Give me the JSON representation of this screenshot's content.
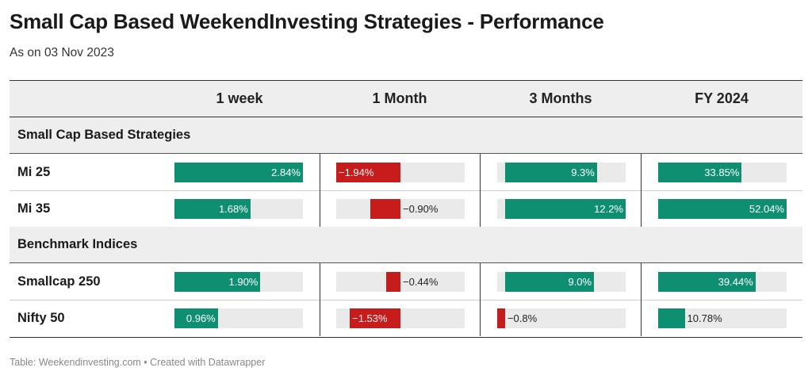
{
  "title": "Small Cap Based WeekendInvesting Strategies - Performance",
  "subtitle": "As on 03 Nov 2023",
  "footer": "Table: Weekendinvesting.com • Created with Datawrapper",
  "columns": [
    "1 week",
    "1 Month",
    "3 Months",
    "FY 2024"
  ],
  "colors": {
    "positive": "#0f8f72",
    "negative": "#c71c1c",
    "track": "#eaeaea",
    "header_bg": "#eeeeee"
  },
  "groups": [
    {
      "name": "Small Cap Based Strategies",
      "rows": [
        {
          "label": "Mi 25",
          "values": [
            2.84,
            -1.94,
            9.3,
            33.85
          ],
          "labels": [
            "2.84%",
            "−1.94%",
            "9.3%",
            "33.85%"
          ]
        },
        {
          "label": "Mi 35",
          "values": [
            1.68,
            -0.9,
            12.2,
            52.04
          ],
          "labels": [
            "1.68%",
            "−0.90%",
            "12.2%",
            "52.04%"
          ]
        }
      ]
    },
    {
      "name": "Benchmark Indices",
      "rows": [
        {
          "label": "Smallcap 250",
          "values": [
            1.9,
            -0.44,
            9.0,
            39.44
          ],
          "labels": [
            "1.90%",
            "−0.44%",
            "9.0%",
            "39.44%"
          ]
        },
        {
          "label": "Nifty 50",
          "values": [
            0.96,
            -1.53,
            -0.8,
            10.78
          ],
          "labels": [
            "0.96%",
            "−1.53%",
            "−0.8%",
            "10.78%"
          ]
        }
      ]
    }
  ],
  "chart_data": {
    "type": "table",
    "title": "Small Cap Based WeekendInvesting Strategies - Performance",
    "subtitle": "As on 03 Nov 2023",
    "columns": [
      "1 week",
      "1 Month",
      "3 Months",
      "FY 2024"
    ],
    "series": [
      {
        "name": "Mi 25",
        "group": "Small Cap Based Strategies",
        "values": [
          2.84,
          -1.94,
          9.3,
          33.85
        ]
      },
      {
        "name": "Mi 35",
        "group": "Small Cap Based Strategies",
        "values": [
          1.68,
          -0.9,
          12.2,
          52.04
        ]
      },
      {
        "name": "Smallcap 250",
        "group": "Benchmark Indices",
        "values": [
          1.9,
          -0.44,
          9.0,
          39.44
        ]
      },
      {
        "name": "Nifty 50",
        "group": "Benchmark Indices",
        "values": [
          0.96,
          -1.53,
          -0.8,
          10.78
        ]
      }
    ],
    "column_scales": [
      [
        0,
        2.84
      ],
      [
        -1.94,
        1.94
      ],
      [
        -0.8,
        12.2
      ],
      [
        0,
        52.04
      ]
    ]
  }
}
